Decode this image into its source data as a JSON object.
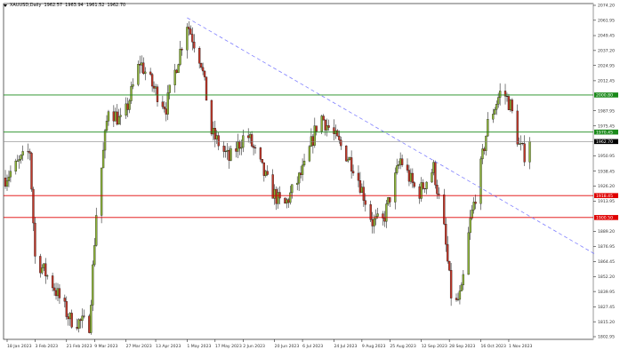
{
  "header": {
    "symbol": "XAUUSD,Daily",
    "open": "1962.57",
    "high": "1963.94",
    "low": "1961.52",
    "close": "1962.70"
  },
  "chart_data": {
    "type": "candlestick",
    "y_ticks": [
      "2074.20",
      "2061.95",
      "2049.45",
      "2037.20",
      "2024.95",
      "2012.45",
      "1987.95",
      "1975.45",
      "1950.95",
      "1938.45",
      "1926.20",
      "1913.95",
      "1889.20",
      "1876.95",
      "1864.45",
      "1852.20",
      "1839.95",
      "1827.45",
      "1815.20",
      "1802.95"
    ],
    "ylim": [
      1802.95,
      2074.2
    ],
    "x_ticks": [
      "18 Jan 2023",
      "3 Feb 2023",
      "21 Feb 2023",
      "9 Mar 2023",
      "27 Mar 2023",
      "13 Apr 2023",
      "1 May 2023",
      "17 May 2023",
      "2 Jun 2023",
      "20 Jun 2023",
      "6 Jul 2023",
      "24 Jul 2023",
      "9 Aug 2023",
      "25 Aug 2023",
      "12 Sep 2023",
      "28 Sep 2023",
      "16 Oct 2023",
      "1 Nov 2023"
    ],
    "price_path": [
      [
        "2023-01-17",
        1933
      ],
      [
        "2023-01-24",
        1944
      ],
      [
        "2023-01-31",
        1955
      ],
      [
        "2023-02-03",
        1868
      ],
      [
        "2023-02-13",
        1846
      ],
      [
        "2023-02-23",
        1817
      ],
      [
        "2023-03-06",
        1813
      ],
      [
        "2023-03-10",
        1904
      ],
      [
        "2023-03-17",
        1991
      ],
      [
        "2023-03-25",
        1977
      ],
      [
        "2023-04-04",
        2028
      ],
      [
        "2023-04-12",
        2006
      ],
      [
        "2023-04-19",
        1991
      ],
      [
        "2023-05-01",
        2060
      ],
      [
        "2023-05-09",
        2028
      ],
      [
        "2023-05-15",
        1970
      ],
      [
        "2023-05-25",
        1948
      ],
      [
        "2023-06-04",
        1970
      ],
      [
        "2023-06-17",
        1926
      ],
      [
        "2023-06-25",
        1908
      ],
      [
        "2023-07-07",
        1941
      ],
      [
        "2023-07-16",
        1985
      ],
      [
        "2023-07-26",
        1963
      ],
      [
        "2023-08-05",
        1941
      ],
      [
        "2023-08-15",
        1897
      ],
      [
        "2023-08-21",
        1897
      ],
      [
        "2023-08-31",
        1948
      ],
      [
        "2023-09-10",
        1919
      ],
      [
        "2023-09-19",
        1941
      ],
      [
        "2023-09-25",
        1890
      ],
      [
        "2023-09-30",
        1824
      ],
      [
        "2023-10-05",
        1839
      ],
      [
        "2023-10-10",
        1897
      ],
      [
        "2023-10-15",
        1933
      ],
      [
        "2023-10-20",
        1977
      ],
      [
        "2023-10-28",
        2006
      ],
      [
        "2023-11-02",
        1992
      ],
      [
        "2023-11-07",
        1959
      ],
      [
        "2023-11-12",
        1948
      ],
      [
        "2023-11-13",
        1963
      ]
    ],
    "levels": [
      {
        "price": 2000.8,
        "label": "2000.80",
        "color": "#1a8a1a"
      },
      {
        "price": 1970.45,
        "label": "1970.45",
        "color": "#1a8a1a"
      },
      {
        "price": 1962.7,
        "label": "1962.70",
        "color": "#000000",
        "current": true
      },
      {
        "price": 1918.45,
        "label": "1918.45",
        "color": "#e00000"
      },
      {
        "price": 1900.5,
        "label": "1900.50",
        "color": "#e00000"
      }
    ],
    "trendline": {
      "from": [
        "2023-05-01",
        2064
      ],
      "to": [
        "2023-12-21",
        1870
      ],
      "color": "#7f7fff"
    },
    "colors": {
      "bull": "#8db33a",
      "bear": "#c0392b",
      "outline": "#000000"
    }
  }
}
